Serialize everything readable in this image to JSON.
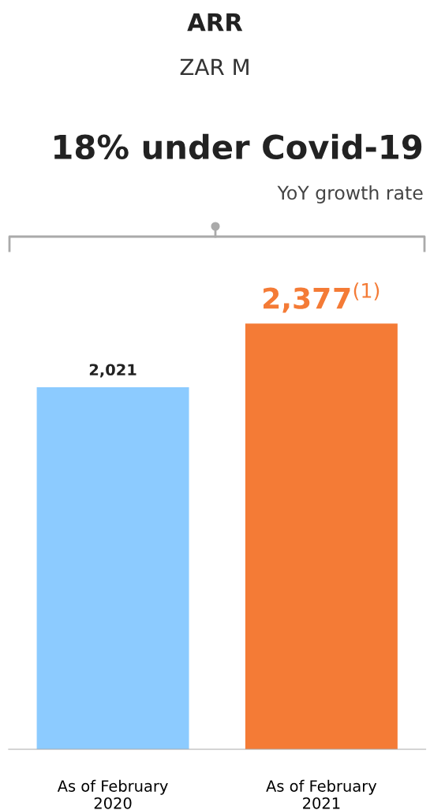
{
  "chart_data": {
    "type": "bar",
    "title": "ARR",
    "subtitle": "ZAR M",
    "annotations": [
      "18% under Covid-19",
      "YoY growth rate"
    ],
    "categories": [
      "As of February\n2020",
      "As of February\n2021"
    ],
    "values": [
      2021,
      2377
    ],
    "colors": [
      "#8ccbff",
      "#f47b36"
    ],
    "value_labels": [
      "2,021",
      "2,377$^{(1)}$"
    ]
  }
}
